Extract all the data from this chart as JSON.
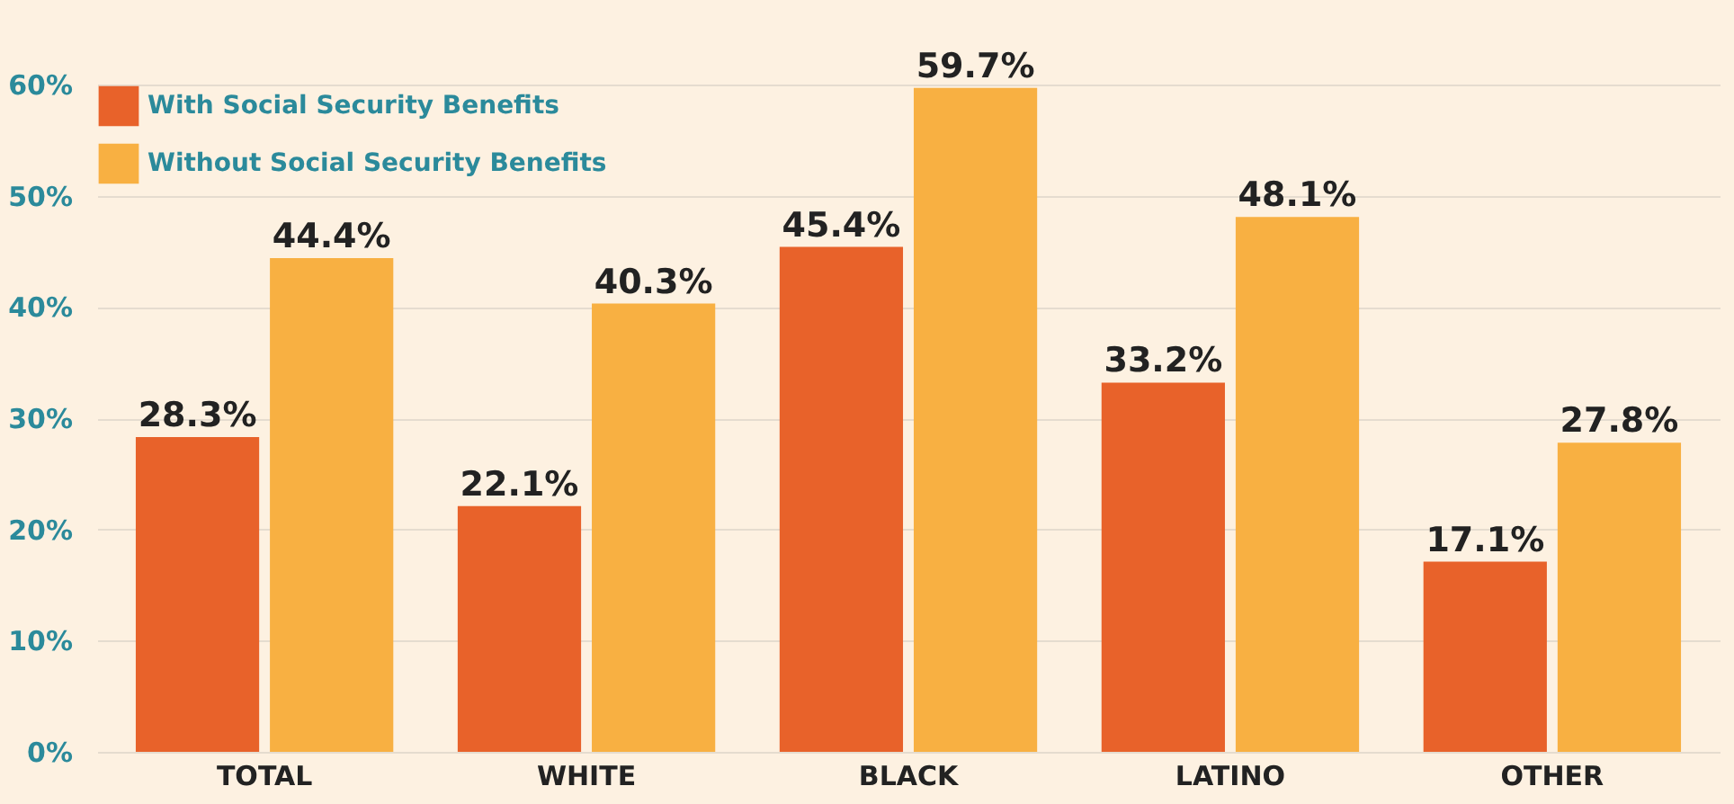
{
  "chart_data": {
    "type": "bar",
    "categories": [
      "TOTAL",
      "WHITE",
      "BLACK",
      "LATINO",
      "OTHER"
    ],
    "series": [
      {
        "name": "With Social Security Benefits",
        "color": "#e8622a",
        "values": [
          28.3,
          22.1,
          45.4,
          33.2,
          17.1
        ],
        "value_labels": [
          "28.3%",
          "22.1%",
          "45.4%",
          "33.2%",
          "17.1%"
        ]
      },
      {
        "name": "Without Social Security Benefits",
        "color": "#f8b042",
        "values": [
          44.4,
          40.3,
          59.7,
          48.1,
          27.8
        ],
        "value_labels": [
          "44.4%",
          "40.3%",
          "59.7%",
          "48.1%",
          "27.8%"
        ]
      }
    ],
    "ylim": [
      0,
      60
    ],
    "yticks": [
      {
        "value": 0,
        "label": "0%"
      },
      {
        "value": 10,
        "label": "10%"
      },
      {
        "value": 20,
        "label": "20%"
      },
      {
        "value": 30,
        "label": "30%"
      },
      {
        "value": 40,
        "label": "40%"
      },
      {
        "value": 50,
        "label": "50%"
      },
      {
        "value": 60,
        "label": "60%"
      }
    ],
    "grid": "y",
    "legend": "top left"
  }
}
